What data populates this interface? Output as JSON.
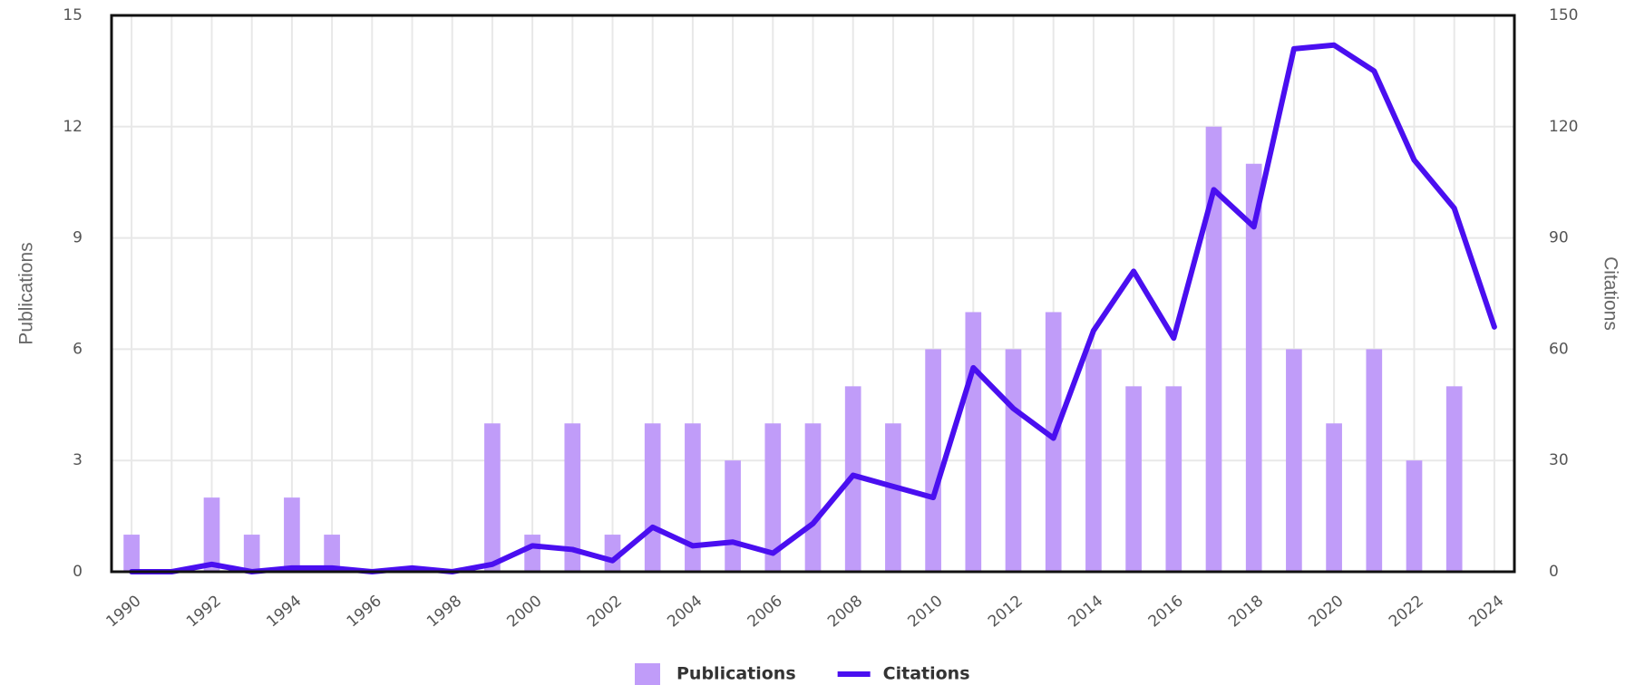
{
  "chart_data": {
    "type": "bar",
    "categories": [
      "1990",
      null,
      "1992",
      null,
      "1994",
      null,
      "1996",
      null,
      "1998",
      null,
      "2000",
      null,
      "2002",
      null,
      "2004",
      null,
      "2006",
      null,
      "2008",
      null,
      "2010",
      null,
      "2012",
      null,
      "2014",
      null,
      "2016",
      null,
      "2018",
      null,
      "2020",
      null,
      "2022",
      null,
      "2024"
    ],
    "series": [
      {
        "name": "Publications",
        "type": "bar",
        "color": "#c09cf9",
        "values": [
          1,
          0,
          2,
          1,
          2,
          1,
          0,
          0,
          0,
          4,
          1,
          4,
          1,
          4,
          4,
          3,
          4,
          4,
          5,
          4,
          6,
          7,
          6,
          7,
          6,
          5,
          5,
          12,
          11,
          6,
          4,
          6,
          3,
          5,
          0
        ]
      },
      {
        "name": "Citations",
        "type": "line",
        "axis": "y2",
        "color": "#4a0ff0",
        "values": [
          0,
          0,
          2,
          0,
          1,
          1,
          0,
          1,
          0,
          2,
          7,
          6,
          3,
          12,
          7,
          8,
          5,
          13,
          26,
          23,
          20,
          55,
          44,
          36,
          65,
          81,
          63,
          103,
          93,
          141,
          142,
          135,
          111,
          98,
          66
        ]
      }
    ],
    "ylabel": "Publications",
    "y2label": "Citations",
    "ylim": [
      0,
      15
    ],
    "yticks": [
      0,
      3,
      6,
      9,
      12,
      15
    ],
    "y2lim": [
      0,
      150
    ],
    "y2ticks": [
      0,
      30,
      60,
      90,
      120,
      150
    ],
    "grid": true,
    "legend": "bottom"
  }
}
